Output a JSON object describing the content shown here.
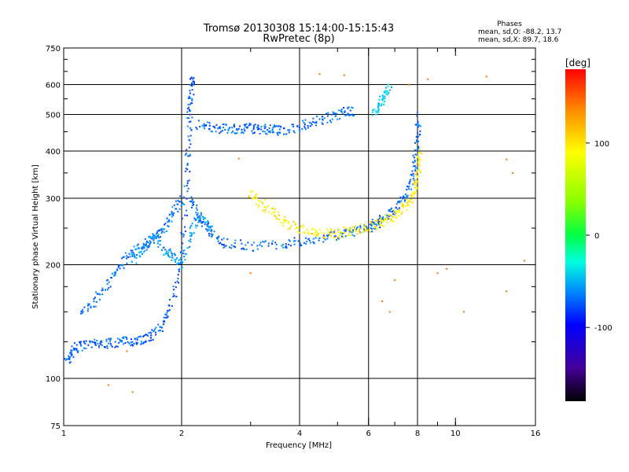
{
  "title": {
    "line1": "Tromsø 20130308 15:14:00-15:15:43",
    "line2": "RwPretec (8p)"
  },
  "phases_box": {
    "heading": "Phases",
    "line_o": "mean, sd,O: -88.2, 13.7",
    "line_x": "mean, sd,X:  89.7, 18.6"
  },
  "colorbar": {
    "unit": "[deg]",
    "tick_labels": [
      "100",
      "0",
      "-100"
    ],
    "tick_values": [
      100,
      0,
      -100
    ],
    "range": [
      -180,
      180
    ]
  },
  "chart_data": {
    "type": "scatter",
    "xlabel": "Frequency [MHz]",
    "ylabel": "Stationary phase Virtual Height [km]",
    "x_scale": "log",
    "y_scale": "log",
    "xlim": [
      1,
      16
    ],
    "ylim": [
      75,
      750
    ],
    "x_ticks": [
      1,
      2,
      4,
      6,
      8,
      10,
      16
    ],
    "x_tick_labels": [
      "1",
      "2",
      "4",
      "6",
      "8",
      "10",
      "16"
    ],
    "x_gridlines": [
      2,
      4,
      6,
      8
    ],
    "x_minor_ticks": [
      3,
      5,
      7,
      9,
      10
    ],
    "y_ticks": [
      75,
      100,
      200,
      300,
      400,
      500,
      600,
      750
    ],
    "y_tick_labels": [
      "75",
      "100",
      "200",
      "300",
      "400",
      "500",
      "600",
      "750"
    ],
    "y_gridlines": [
      100,
      200,
      300,
      400,
      500,
      600
    ],
    "y_minor_ticks": [
      125,
      150,
      175,
      250,
      350,
      450,
      550,
      650,
      700
    ],
    "grid": true,
    "color_by": "phase_deg",
    "series": [
      {
        "trace": "low_region_lower",
        "phase": -110,
        "points": [
          [
            1.02,
            110
          ],
          [
            1.05,
            118
          ],
          [
            1.1,
            122
          ],
          [
            1.2,
            123
          ],
          [
            1.3,
            124
          ],
          [
            1.4,
            125
          ],
          [
            1.5,
            126
          ],
          [
            1.6,
            127
          ],
          [
            1.7,
            130
          ],
          [
            1.8,
            140
          ],
          [
            1.9,
            165
          ],
          [
            2.0,
            210
          ],
          [
            2.05,
            300
          ],
          [
            2.08,
            400
          ],
          [
            2.1,
            500
          ],
          [
            2.12,
            580
          ],
          [
            2.14,
            630
          ]
        ]
      },
      {
        "trace": "low_region_upper",
        "phase": -105,
        "points": [
          [
            1.1,
            150
          ],
          [
            1.2,
            160
          ],
          [
            1.3,
            180
          ],
          [
            1.4,
            200
          ],
          [
            1.5,
            215
          ],
          [
            1.6,
            225
          ],
          [
            1.7,
            235
          ],
          [
            1.8,
            250
          ],
          [
            1.9,
            275
          ],
          [
            2.0,
            300
          ]
        ]
      },
      {
        "trace": "cusp_200km_scatter",
        "phase": -95,
        "points": [
          [
            1.5,
            205
          ],
          [
            1.6,
            220
          ],
          [
            1.7,
            240
          ],
          [
            1.8,
            220
          ],
          [
            1.9,
            210
          ],
          [
            2.0,
            200
          ],
          [
            2.1,
            240
          ],
          [
            2.2,
            270
          ],
          [
            2.3,
            260
          ],
          [
            2.4,
            245
          ]
        ]
      },
      {
        "trace": "o_trace_f_layer",
        "phase": -108,
        "points": [
          [
            2.1,
            300
          ],
          [
            2.2,
            265
          ],
          [
            2.4,
            240
          ],
          [
            2.6,
            228
          ],
          [
            3.0,
            224
          ],
          [
            3.5,
            226
          ],
          [
            4.0,
            230
          ],
          [
            4.5,
            235
          ],
          [
            5.0,
            240
          ],
          [
            5.5,
            245
          ],
          [
            6.0,
            250
          ],
          [
            6.3,
            258
          ],
          [
            6.6,
            266
          ],
          [
            7.0,
            280
          ],
          [
            7.4,
            300
          ],
          [
            7.7,
            330
          ],
          [
            7.9,
            370
          ],
          [
            8.0,
            430
          ],
          [
            8.05,
            500
          ]
        ]
      },
      {
        "trace": "x_trace_f_layer",
        "phase": 95,
        "points": [
          [
            3.0,
            310
          ],
          [
            3.2,
            290
          ],
          [
            3.5,
            270
          ],
          [
            3.8,
            255
          ],
          [
            4.2,
            245
          ],
          [
            4.6,
            242
          ],
          [
            5.0,
            243
          ],
          [
            5.5,
            247
          ],
          [
            6.0,
            252
          ],
          [
            6.4,
            258
          ],
          [
            6.8,
            266
          ],
          [
            7.2,
            276
          ],
          [
            7.6,
            292
          ],
          [
            7.9,
            320
          ],
          [
            8.05,
            360
          ],
          [
            8.1,
            400
          ]
        ]
      },
      {
        "trace": "upper_echo_450km",
        "phase": -108,
        "points": [
          [
            2.2,
            470
          ],
          [
            2.4,
            462
          ],
          [
            2.6,
            458
          ],
          [
            2.8,
            455
          ],
          [
            3.0,
            460
          ],
          [
            3.2,
            458
          ],
          [
            3.4,
            455
          ],
          [
            3.6,
            453
          ],
          [
            4.0,
            465
          ],
          [
            4.4,
            478
          ],
          [
            4.8,
            492
          ],
          [
            5.2,
            505
          ],
          [
            5.5,
            512
          ]
        ]
      },
      {
        "trace": "upper_echo_600km",
        "phase": -80,
        "points": [
          [
            6.2,
            500
          ],
          [
            6.4,
            530
          ],
          [
            6.6,
            560
          ],
          [
            6.8,
            600
          ]
        ]
      },
      {
        "trace": "sparse_points",
        "phase": 140,
        "points": [
          [
            1.3,
            96
          ],
          [
            1.5,
            92
          ],
          [
            1.45,
            118
          ],
          [
            6.5,
            160
          ],
          [
            7.0,
            182
          ],
          [
            8.5,
            620
          ],
          [
            9.0,
            190
          ],
          [
            9.5,
            195
          ],
          [
            10.5,
            150
          ],
          [
            12.0,
            630
          ],
          [
            13.5,
            380
          ],
          [
            13.5,
            170
          ],
          [
            14.0,
            350
          ],
          [
            15.0,
            205
          ],
          [
            4.5,
            640
          ],
          [
            5.2,
            635
          ],
          [
            2.8,
            382
          ],
          [
            3.0,
            190
          ],
          [
            6.8,
            150
          ],
          [
            7.6,
            600
          ]
        ]
      }
    ]
  }
}
